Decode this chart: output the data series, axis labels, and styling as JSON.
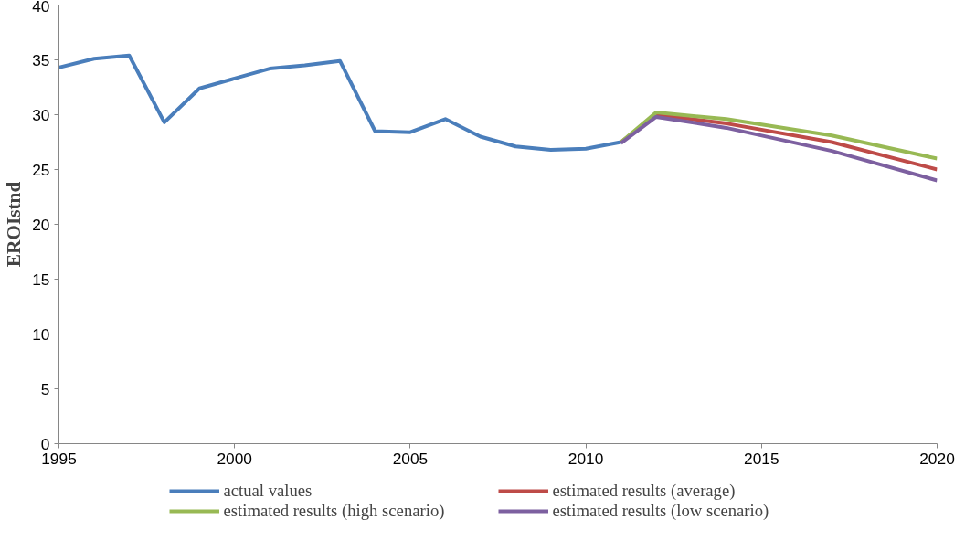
{
  "chart_data": {
    "type": "line",
    "ylabel": "EROIstnd",
    "xlim": [
      1995,
      2020
    ],
    "xticks": [
      1995,
      2000,
      2005,
      2010,
      2015,
      2020
    ],
    "ylim": [
      0,
      40
    ],
    "yticks": [
      0,
      5,
      10,
      15,
      20,
      25,
      30,
      35,
      40
    ],
    "grid": false,
    "legend": "bottom",
    "marker": "none",
    "line_style": "solid",
    "series": [
      {
        "name": "actual values",
        "color": "#4a7ebb",
        "x": [
          1995,
          1996,
          1997,
          1998,
          1999,
          2000,
          2001,
          2002,
          2003,
          2004,
          2005,
          2006,
          2007,
          2008,
          2009,
          2010,
          2011
        ],
        "values": [
          34.3,
          35.1,
          35.4,
          29.3,
          32.4,
          33.3,
          34.2,
          34.5,
          34.9,
          28.5,
          28.4,
          29.6,
          28.0,
          27.1,
          26.8,
          26.9,
          27.5
        ]
      },
      {
        "name": "estimated results (average)",
        "color": "#be4b48",
        "x": [
          2011,
          2012,
          2014,
          2017,
          2020
        ],
        "values": [
          27.5,
          30.0,
          29.2,
          27.5,
          25.0
        ]
      },
      {
        "name": "estimated results (high scenario)",
        "color": "#98b954",
        "x": [
          2011,
          2012,
          2014,
          2017,
          2020
        ],
        "values": [
          27.5,
          30.2,
          29.6,
          28.1,
          26.0
        ]
      },
      {
        "name": "estimated results (low scenario)",
        "color": "#7d60a0",
        "x": [
          2011,
          2012,
          2014,
          2017,
          2020
        ],
        "values": [
          27.4,
          29.8,
          28.8,
          26.7,
          24.0
        ]
      }
    ]
  }
}
